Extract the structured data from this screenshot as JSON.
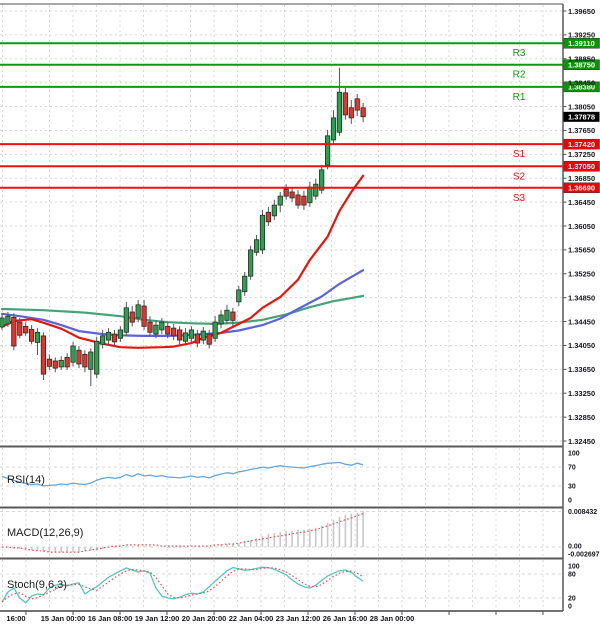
{
  "page": {
    "description": "Forex candlestick price chart with pivot resistance/support levels, three moving averages and RSI, MACD, Stochastic indicator panels"
  },
  "colors": {
    "bull": "#2aa14d",
    "bear": "#e1352b",
    "candle_border": "#2b2b2b",
    "wick": "#555555",
    "ma_fast": "#e8150d",
    "ma_medium": "#5864d8",
    "ma_slow": "#46a277",
    "resistance": "#0c9b0c",
    "support": "#f01010",
    "badge_green": "#089600",
    "badge_red": "#ee0000",
    "badge_black": "#000000",
    "badge_text": "#ffffff",
    "rsi_line": "#63a6e0",
    "macd_hist": "#c9c9c9",
    "macd_signal": "#e85050",
    "stoch_k": "#52c8be",
    "stoch_d": "#e85050",
    "grid": "#d8d8d8",
    "border": "#6f6f6f",
    "axis_text": "#15151d"
  },
  "chart_data": [
    {
      "type": "candlestick",
      "title": "",
      "x_axis_labels": [
        "16:00",
        "15 Jan 00:00",
        "16 Jan 08:00",
        "19 Jan 12:00",
        "20 Jan 20:00",
        "22 Jan 04:00",
        "23 Jan 12:00",
        "26 Jan 16:00",
        "28 Jan 00:00"
      ],
      "y_axis": {
        "min": 1.3245,
        "max": 1.3965,
        "tick": 0.004
      },
      "y_axis_labels": [
        "1.39650",
        "1.39250",
        "1.38850",
        "1.38450",
        "1.38050",
        "1.37650",
        "1.37250",
        "1.36850",
        "1.36450",
        "1.36050",
        "1.35650",
        "1.35250",
        "1.34850",
        "1.34450",
        "1.34050",
        "1.33650",
        "1.33250",
        "1.32850",
        "1.32450"
      ],
      "levels": [
        {
          "label": "R3",
          "value": "1.39110",
          "price": 1.3911,
          "kind": "resistance"
        },
        {
          "label": "R2",
          "value": "1.38750",
          "price": 1.3875,
          "kind": "resistance"
        },
        {
          "label": "R1",
          "value": "1.38380",
          "price": 1.3838,
          "kind": "resistance"
        },
        {
          "label": "S1",
          "value": "1.37420",
          "price": 1.3742,
          "kind": "support"
        },
        {
          "label": "S2",
          "value": "1.37050",
          "price": 1.3705,
          "kind": "support"
        },
        {
          "label": "S3",
          "value": "1.36690",
          "price": 1.3669,
          "kind": "support"
        }
      ],
      "last_price": {
        "value": "1.37878",
        "price": 1.37878
      },
      "candles": [
        [
          1.3436,
          1.3458,
          1.3431,
          1.3451
        ],
        [
          1.3441,
          1.3461,
          1.3436,
          1.3454
        ],
        [
          1.3452,
          1.3459,
          1.3397,
          1.3404
        ],
        [
          1.3444,
          1.3451,
          1.3417,
          1.3422
        ],
        [
          1.3437,
          1.3444,
          1.3421,
          1.3426
        ],
        [
          1.3432,
          1.3439,
          1.3407,
          1.3412
        ],
        [
          1.341,
          1.3434,
          1.3389,
          1.3427
        ],
        [
          1.3421,
          1.3427,
          1.3347,
          1.3357
        ],
        [
          1.3382,
          1.339,
          1.3364,
          1.337
        ],
        [
          1.3379,
          1.3385,
          1.336,
          1.3367
        ],
        [
          1.3369,
          1.3387,
          1.3364,
          1.338
        ],
        [
          1.3385,
          1.3392,
          1.3364,
          1.3369
        ],
        [
          1.3377,
          1.3411,
          1.337,
          1.3404
        ],
        [
          1.3397,
          1.3404,
          1.3367,
          1.3374
        ],
        [
          1.339,
          1.3397,
          1.336,
          1.3369
        ],
        [
          1.3365,
          1.34,
          1.3337,
          1.3394
        ],
        [
          1.3357,
          1.3419,
          1.335,
          1.3412
        ],
        [
          1.3407,
          1.3431,
          1.34,
          1.3421
        ],
        [
          1.3414,
          1.3434,
          1.3407,
          1.3427
        ],
        [
          1.3424,
          1.3431,
          1.3404,
          1.3411
        ],
        [
          1.3417,
          1.3437,
          1.3411,
          1.3431
        ],
        [
          1.3427,
          1.3478,
          1.3421,
          1.3468
        ],
        [
          1.3461,
          1.3471,
          1.3437,
          1.3444
        ],
        [
          1.3451,
          1.3481,
          1.3444,
          1.3473
        ],
        [
          1.3471,
          1.3481,
          1.3431,
          1.3437
        ],
        [
          1.3444,
          1.3454,
          1.3421,
          1.3427
        ],
        [
          1.3424,
          1.3447,
          1.3417,
          1.3439
        ],
        [
          1.3431,
          1.3451,
          1.3424,
          1.3444
        ],
        [
          1.3437,
          1.3444,
          1.3417,
          1.3424
        ],
        [
          1.3434,
          1.3441,
          1.3414,
          1.3421
        ],
        [
          1.3431,
          1.3437,
          1.3407,
          1.3414
        ],
        [
          1.3412,
          1.3434,
          1.3406,
          1.3426
        ],
        [
          1.3417,
          1.3437,
          1.3411,
          1.3431
        ],
        [
          1.3424,
          1.3431,
          1.3402,
          1.3409
        ],
        [
          1.3414,
          1.3436,
          1.3407,
          1.3429
        ],
        [
          1.3424,
          1.3431,
          1.34,
          1.3407
        ],
        [
          1.3417,
          1.3454,
          1.3411,
          1.3444
        ],
        [
          1.3441,
          1.3464,
          1.3434,
          1.3456
        ],
        [
          1.3447,
          1.3473,
          1.3441,
          1.3464
        ],
        [
          1.3461,
          1.3468,
          1.3437,
          1.3447
        ],
        [
          1.3478,
          1.3505,
          1.3471,
          1.3498
        ],
        [
          1.3495,
          1.3528,
          1.3488,
          1.3521
        ],
        [
          1.3521,
          1.3572,
          1.3515,
          1.3565
        ],
        [
          1.3561,
          1.359,
          1.3555,
          1.3582
        ],
        [
          1.3565,
          1.3632,
          1.3558,
          1.3623
        ],
        [
          1.3628,
          1.3637,
          1.3605,
          1.3612
        ],
        [
          1.3622,
          1.3649,
          1.3615,
          1.364
        ],
        [
          1.364,
          1.3662,
          1.3628,
          1.3655
        ],
        [
          1.3667,
          1.3675,
          1.3649,
          1.3655
        ],
        [
          1.3662,
          1.367,
          1.3645,
          1.3652
        ],
        [
          1.3657,
          1.3665,
          1.3634,
          1.364
        ],
        [
          1.3655,
          1.3664,
          1.3632,
          1.364
        ],
        [
          1.3644,
          1.3679,
          1.3637,
          1.367
        ],
        [
          1.3655,
          1.3684,
          1.3649,
          1.3675
        ],
        [
          1.3665,
          1.3707,
          1.3659,
          1.3699
        ],
        [
          1.3707,
          1.3766,
          1.37,
          1.3756
        ],
        [
          1.3749,
          1.3799,
          1.3742,
          1.3786
        ],
        [
          1.3762,
          1.387,
          1.3756,
          1.3829
        ],
        [
          1.3828,
          1.3836,
          1.3783,
          1.3791
        ],
        [
          1.3803,
          1.3816,
          1.3776,
          1.3786
        ],
        [
          1.3818,
          1.3826,
          1.3789,
          1.3799
        ],
        [
          1.3803,
          1.3811,
          1.3779,
          1.3788
        ]
      ],
      "moving_averages": [
        {
          "name": "ma-fast",
          "anchors": [
            [
              0,
              1.3436
            ],
            [
              2,
              1.3446
            ],
            [
              5,
              1.3449
            ],
            [
              7,
              1.3443
            ],
            [
              10,
              1.3433
            ],
            [
              13,
              1.3418
            ],
            [
              17,
              1.3408
            ],
            [
              20,
              1.3402
            ],
            [
              23,
              1.3401
            ],
            [
              27,
              1.3402
            ],
            [
              29,
              1.3403
            ],
            [
              32,
              1.3409
            ],
            [
              34,
              1.3418
            ],
            [
              37,
              1.3426
            ],
            [
              39,
              1.3436
            ],
            [
              42,
              1.3451
            ],
            [
              44,
              1.3468
            ],
            [
              47,
              1.3486
            ],
            [
              50,
              1.3515
            ],
            [
              52,
              1.3548
            ],
            [
              55,
              1.3587
            ],
            [
              57,
              1.363
            ],
            [
              59,
              1.3662
            ],
            [
              61,
              1.3689
            ]
          ]
        },
        {
          "name": "ma-medium",
          "anchors": [
            [
              0,
              1.3458
            ],
            [
              3,
              1.3454
            ],
            [
              7,
              1.3448
            ],
            [
              10,
              1.3439
            ],
            [
              13,
              1.3429
            ],
            [
              17,
              1.3424
            ],
            [
              20,
              1.3422
            ],
            [
              24,
              1.3421
            ],
            [
              28,
              1.3421
            ],
            [
              31,
              1.3422
            ],
            [
              34,
              1.3424
            ],
            [
              37,
              1.3426
            ],
            [
              40,
              1.343
            ],
            [
              44,
              1.3439
            ],
            [
              47,
              1.345
            ],
            [
              50,
              1.3466
            ],
            [
              54,
              1.3487
            ],
            [
              57,
              1.3508
            ],
            [
              61,
              1.3531
            ]
          ]
        },
        {
          "name": "ma-slow",
          "anchors": [
            [
              0,
              1.3466
            ],
            [
              7,
              1.3464
            ],
            [
              14,
              1.346
            ],
            [
              20,
              1.3454
            ],
            [
              24,
              1.3448
            ],
            [
              28,
              1.3444
            ],
            [
              32,
              1.3442
            ],
            [
              36,
              1.3441
            ],
            [
              40,
              1.3443
            ],
            [
              44,
              1.3448
            ],
            [
              48,
              1.3457
            ],
            [
              52,
              1.3469
            ],
            [
              56,
              1.3479
            ],
            [
              61,
              1.3488
            ]
          ]
        }
      ]
    },
    {
      "type": "line",
      "title": "RSI(14)",
      "range": [
        0,
        100
      ],
      "y_axis_labels": [
        "100",
        "70",
        "30",
        "0"
      ],
      "guide_levels": [
        70,
        30
      ],
      "values": [
        50,
        46,
        42,
        38,
        35,
        33,
        34,
        30,
        31,
        32,
        34,
        33,
        36,
        34,
        33,
        36,
        42,
        46,
        48,
        46,
        48,
        54,
        50,
        56,
        51,
        53,
        50,
        52,
        49,
        48,
        47,
        49,
        51,
        48,
        50,
        47,
        52,
        55,
        58,
        56,
        60,
        62,
        65,
        67,
        70,
        68,
        71,
        73,
        71,
        70,
        69,
        68,
        71,
        73,
        76,
        78,
        79,
        80,
        76,
        74,
        78,
        75
      ]
    },
    {
      "type": "bar",
      "title": "MACD(12,26,9)",
      "y_axis_labels": [
        "0.008432",
        "0.00",
        "-0.002697"
      ],
      "max": 0.008432,
      "min": -0.002697,
      "hist": [
        -0.0001,
        -0.0001,
        -0.0002,
        -0.0005,
        -0.0005,
        -0.0007,
        -0.0009,
        -0.0012,
        -0.0012,
        -0.0012,
        -0.0012,
        -0.0012,
        -0.0012,
        -0.0012,
        -0.0009,
        -0.0009,
        -0.0007,
        -0.0005,
        -0.0002,
        -0.0002,
        0,
        0.0002,
        0.0002,
        0.0005,
        0.0002,
        0.0002,
        0,
        0,
        -0.0002,
        -0.0002,
        -0.0002,
        -0.0002,
        0,
        0,
        0,
        -0.0002,
        0.0002,
        0.0005,
        0.0007,
        0.0007,
        0.0009,
        0.0012,
        0.0017,
        0.0021,
        0.0026,
        0.0031,
        0.0033,
        0.0035,
        0.0038,
        0.0038,
        0.004,
        0.004,
        0.0042,
        0.0045,
        0.005,
        0.0057,
        0.0064,
        0.0071,
        0.0076,
        0.0078,
        0.008,
        0.0084
      ],
      "signal": [
        0,
        0,
        -0.0002,
        -0.0002,
        -0.0005,
        -0.0007,
        -0.0009,
        -0.0009,
        -0.0012,
        -0.0012,
        -0.0012,
        -0.0012,
        -0.0012,
        -0.0012,
        -0.0009,
        -0.0007,
        -0.0005,
        -0.0002,
        0,
        0.0002,
        0.0002,
        0.0005,
        0.0005,
        0.0005,
        0.0005,
        0.0005,
        0.0005,
        0.0002,
        0.0002,
        0.0002,
        0.0002,
        0.0002,
        0.0002,
        0.0002,
        0.0002,
        0.0002,
        0.0005,
        0.0005,
        0.0007,
        0.0007,
        0.0009,
        0.0012,
        0.0014,
        0.0017,
        0.0019,
        0.0021,
        0.0024,
        0.0026,
        0.0028,
        0.0031,
        0.0033,
        0.0035,
        0.0038,
        0.004,
        0.0045,
        0.005,
        0.0054,
        0.0059,
        0.0064,
        0.0068,
        0.0073,
        0.0078
      ]
    },
    {
      "type": "line",
      "title": "Stoch(9,6,3)",
      "range": [
        0,
        100
      ],
      "y_axis_labels": [
        "100",
        "80",
        "20",
        "0"
      ],
      "guide_levels": [
        80,
        20
      ],
      "k": [
        10,
        35,
        45,
        20,
        8,
        25,
        30,
        28,
        45,
        52,
        55,
        50,
        55,
        58,
        30,
        40,
        48,
        60,
        72,
        80,
        88,
        95,
        90,
        85,
        88,
        82,
        45,
        25,
        20,
        18,
        22,
        28,
        32,
        30,
        35,
        48,
        62,
        75,
        88,
        96,
        93,
        89,
        91,
        94,
        97,
        96,
        92,
        85,
        78,
        65,
        55,
        48,
        45,
        52,
        64,
        75,
        82,
        88,
        90,
        84,
        72,
        62
      ]
    }
  ]
}
